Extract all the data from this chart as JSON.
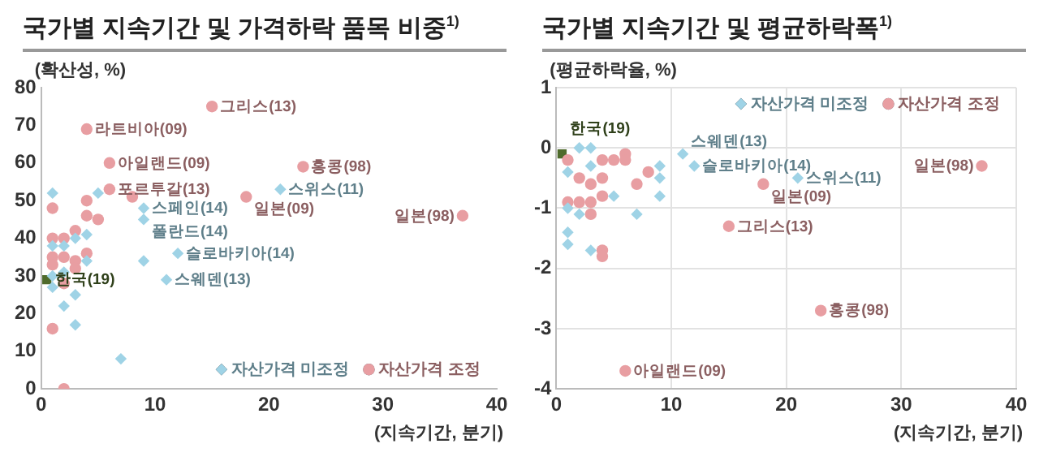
{
  "chart_data": [
    {
      "type": "scatter",
      "title": "국가별 지속기간 및 가격하락 품목 비중$^{1)}$",
      "xlabel": "(지속기간, 분기)",
      "ylabel": "(확산성, %)",
      "xlim": [
        0,
        40
      ],
      "xticks": [
        0,
        10,
        20,
        30,
        40
      ],
      "ylim": [
        0,
        80
      ],
      "yticks": [
        0,
        10,
        20,
        30,
        40,
        50,
        60,
        70,
        80
      ],
      "grid": false,
      "legend": "bottom right",
      "series": [
        {
          "name": "자산가격 미조정",
          "color": "#9fd3e6",
          "marker": "diamond",
          "x": [
            9,
            9,
            21,
            12,
            11,
            9,
            7,
            5,
            4,
            4,
            3,
            3,
            2,
            2,
            1,
            1,
            3,
            2,
            1,
            1
          ],
          "values": [
            48,
            45,
            53,
            36,
            29,
            34,
            8,
            52,
            41,
            34,
            25,
            17,
            22,
            31,
            52,
            38,
            40,
            38,
            30,
            27
          ]
        },
        {
          "name": "자산가격 조정",
          "color": "#e89ea2",
          "marker": "circle",
          "x": [
            15,
            4,
            6,
            6,
            18,
            23,
            37,
            8,
            4,
            4,
            5,
            3,
            2,
            1,
            1,
            4,
            3,
            3,
            1,
            1,
            2,
            2,
            1,
            2
          ],
          "values": [
            75,
            69,
            60,
            53,
            51,
            59,
            46,
            51,
            50,
            46,
            45,
            42,
            40,
            40,
            48,
            36,
            34,
            32,
            35,
            33,
            35,
            28,
            16,
            0
          ]
        },
        {
          "color": "#4f6b2c",
          "marker": "square",
          "x": [
            0.5
          ],
          "values": [
            29
          ]
        }
      ],
      "annotations": [
        {
          "text": "그리스(13)",
          "x": 15,
          "y": 75
        },
        {
          "text": "라트비아(09)",
          "x": 4,
          "y": 69
        },
        {
          "text": "아일랜드(09)",
          "x": 6,
          "y": 60
        },
        {
          "text": "포르투갈(13)",
          "x": 6,
          "y": 53
        },
        {
          "text": "일본(09)",
          "x": 18,
          "y": 51
        },
        {
          "text": "홍콩(98)",
          "x": 23,
          "y": 59
        },
        {
          "text": "일본(98)",
          "x": 37,
          "y": 46
        },
        {
          "text": "스페인(14)",
          "x": 9,
          "y": 48
        },
        {
          "text": "폴란드(14)",
          "x": 9,
          "y": 45
        },
        {
          "text": "스위스(11)",
          "x": 21,
          "y": 53
        },
        {
          "text": "슬로바키아(14)",
          "x": 12,
          "y": 36
        },
        {
          "text": "스웨덴(13)",
          "x": 11,
          "y": 29
        },
        {
          "text": "한국(19)",
          "x": 0.5,
          "y": 29
        }
      ]
    },
    {
      "type": "scatter",
      "title": "국가별 지속기간 및 평균하락폭$^{1)}$",
      "xlabel": "(지속기간, 분기)",
      "ylabel": "(평균하락율, %)",
      "xlim": [
        0,
        40
      ],
      "xticks": [
        0,
        10,
        20,
        30,
        40
      ],
      "ylim": [
        -4,
        1
      ],
      "yticks": [
        -4,
        -3,
        -2,
        -1,
        0,
        1
      ],
      "grid": true,
      "legend": "top right",
      "series": [
        {
          "name": "자산가격 미조정",
          "color": "#9fd3e6",
          "marker": "diamond",
          "x": [
            11,
            12,
            21,
            9,
            9,
            9,
            7,
            5,
            3,
            1,
            1,
            1,
            2,
            3,
            3,
            2,
            1
          ],
          "values": [
            -0.1,
            -0.3,
            -0.5,
            -0.3,
            -0.5,
            -0.8,
            -1.1,
            -0.8,
            -1.7,
            -1.4,
            -1.6,
            -1.0,
            -1.1,
            -0.3,
            0,
            0,
            -0.4
          ]
        },
        {
          "name": "자산가격 조정",
          "color": "#e89ea2",
          "marker": "circle",
          "x": [
            15,
            18,
            37,
            23,
            6,
            8,
            7,
            6,
            6,
            5,
            4,
            4,
            4,
            4,
            4,
            3,
            3,
            3,
            2,
            1,
            2,
            1
          ],
          "values": [
            -1.3,
            -0.6,
            -0.3,
            -2.7,
            -3.7,
            -0.4,
            -0.6,
            -0.1,
            -0.2,
            -0.2,
            -0.2,
            -0.5,
            -0.8,
            -1.7,
            -1.8,
            -0.9,
            -1.1,
            -0.6,
            -0.9,
            -0.9,
            -0.5,
            -0.2
          ]
        },
        {
          "color": "#4f6b2c",
          "marker": "square",
          "x": [
            0.5
          ],
          "values": [
            -0.1
          ]
        }
      ],
      "annotations": [
        {
          "text": "그리스(13)",
          "x": 15,
          "y": -1.3
        },
        {
          "text": "일본(09)",
          "x": 18,
          "y": -0.6
        },
        {
          "text": "일본(98)",
          "x": 37,
          "y": -0.3
        },
        {
          "text": "홍콩(98)",
          "x": 23,
          "y": -2.7
        },
        {
          "text": "아일랜드(09)",
          "x": 6,
          "y": -3.7
        },
        {
          "text": "스웨덴(13)",
          "x": 11,
          "y": -0.1
        },
        {
          "text": "슬로바키아(14)",
          "x": 12,
          "y": -0.3
        },
        {
          "text": "스위스(11)",
          "x": 21,
          "y": -0.5
        },
        {
          "text": "한국(19)",
          "x": 0.5,
          "y": -0.1
        }
      ]
    }
  ]
}
